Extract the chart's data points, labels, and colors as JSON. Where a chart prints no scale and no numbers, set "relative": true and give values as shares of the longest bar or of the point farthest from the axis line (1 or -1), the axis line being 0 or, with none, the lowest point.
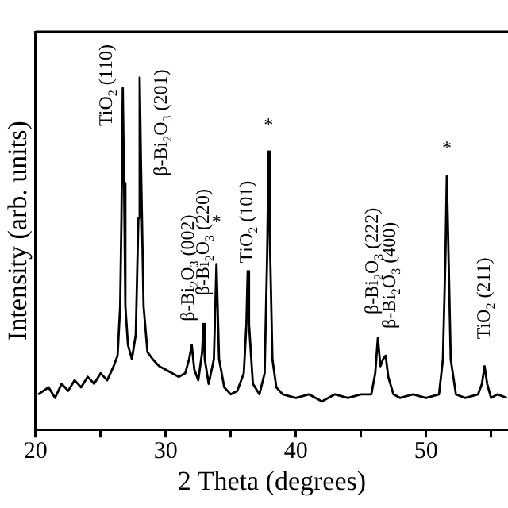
{
  "chart_data": {
    "type": "line",
    "xlabel": "2 Theta (degrees)",
    "ylabel": "Intensity (arb. units)",
    "relative": true,
    "xlim": [
      20,
      56.3
    ],
    "xticks": [
      20,
      {
        "value": 25,
        "label": null
      },
      30,
      {
        "value": 35,
        "label": null
      },
      40,
      {
        "value": 45,
        "label": null
      },
      50,
      {
        "value": 55,
        "label": null
      }
    ],
    "grid": false,
    "legend": false,
    "marker": "none",
    "line_style": "solid",
    "series": [
      {
        "color": "#000000",
        "x": [
          20.2,
          21,
          21.5,
          22,
          22.5,
          23,
          23.5,
          24,
          24.5,
          25,
          25.5,
          26,
          26.3,
          26.5,
          26.6,
          26.7,
          26.8,
          26.9,
          27.1,
          27.4,
          27.7,
          27.9,
          28.0,
          28.1,
          28.3,
          28.6,
          29,
          29.5,
          30,
          30.5,
          31,
          31.5,
          31.8,
          32.0,
          32.2,
          32.5,
          32.8,
          32.9,
          33.0,
          33.3,
          33.7,
          33.9,
          34.1,
          34.5,
          35,
          35.5,
          36.0,
          36.2,
          36.3,
          36.4,
          36.7,
          37.2,
          37.6,
          37.8,
          37.9,
          38.0,
          38.2,
          38.5,
          39,
          40,
          41,
          42,
          43,
          44,
          45,
          45.8,
          46.1,
          46.3,
          46.5,
          46.7,
          46.9,
          47.1,
          47.5,
          48,
          49,
          50,
          51,
          51.3,
          51.5,
          51.6,
          51.7,
          51.9,
          52.3,
          53,
          54,
          54.3,
          54.5,
          54.7,
          55,
          55.5,
          56.2
        ],
        "values": [
          0.1,
          0.12,
          0.09,
          0.13,
          0.11,
          0.14,
          0.12,
          0.15,
          0.13,
          0.16,
          0.14,
          0.18,
          0.21,
          0.35,
          0.6,
          0.97,
          0.7,
          0.35,
          0.24,
          0.2,
          0.27,
          0.6,
          1.0,
          0.75,
          0.35,
          0.22,
          0.2,
          0.18,
          0.17,
          0.16,
          0.15,
          0.16,
          0.2,
          0.24,
          0.17,
          0.14,
          0.22,
          0.3,
          0.2,
          0.13,
          0.2,
          0.47,
          0.2,
          0.12,
          0.1,
          0.11,
          0.16,
          0.3,
          0.45,
          0.3,
          0.13,
          0.1,
          0.16,
          0.5,
          0.79,
          0.55,
          0.2,
          0.12,
          0.1,
          0.09,
          0.1,
          0.08,
          0.1,
          0.09,
          0.1,
          0.1,
          0.16,
          0.26,
          0.18,
          0.2,
          0.21,
          0.15,
          0.1,
          0.09,
          0.1,
          0.09,
          0.1,
          0.2,
          0.5,
          0.72,
          0.55,
          0.2,
          0.1,
          0.09,
          0.1,
          0.13,
          0.18,
          0.13,
          0.09,
          0.1,
          0.09
        ]
      }
    ],
    "annotations": [
      {
        "text": "TiO$_{2}$ (110)",
        "x": 26.7,
        "y": 0.97
      },
      {
        "text": "β-Bi$_{2}$O$_{3}$ (201)",
        "x": 28.0,
        "y": 1.0
      },
      {
        "text": "β-Bi$_{2}$O$_{3}$ (002)",
        "x": 32.0,
        "y": 0.24
      },
      {
        "text": "β-Bi$_{2}$O$_{3}$ (220)",
        "x": 32.9,
        "y": 0.3
      },
      {
        "text": "*",
        "x": 33.9,
        "y": 0.47
      },
      {
        "text": "TiO$_{2}$ (101)",
        "x": 36.3,
        "y": 0.45
      },
      {
        "text": "*",
        "x": 37.9,
        "y": 0.79
      },
      {
        "text": "β-Bi$_{2}$O$_{3}$ (222)",
        "x": 46.3,
        "y": 0.26
      },
      {
        "text": "β-Bi$_{2}$O$_{3}$ (400)",
        "x": 46.9,
        "y": 0.21
      },
      {
        "text": "*",
        "x": 51.6,
        "y": 0.72
      },
      {
        "text": "TiO$_{2}$ (211)",
        "x": 54.5,
        "y": 0.18
      }
    ]
  }
}
